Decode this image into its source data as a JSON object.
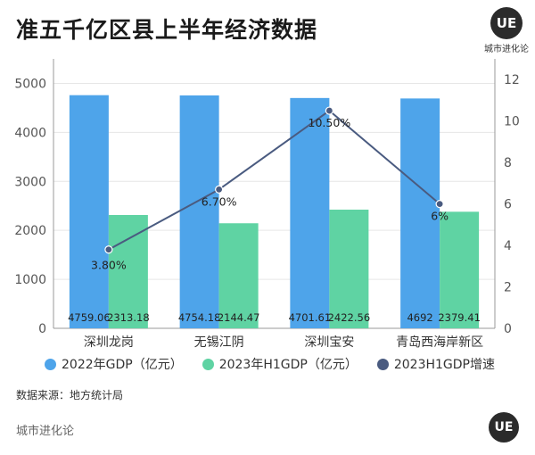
{
  "header": {
    "title": "准五千亿区县上半年经济数据",
    "logo_mark": "UE",
    "logo_caption": "城市进化论"
  },
  "legend": [
    {
      "label": "2022年GDP（亿元）",
      "color": "#4ea4ea"
    },
    {
      "label": "2023年H1GDP（亿元）",
      "color": "#5fd3a3"
    },
    {
      "label": "2023H1GDP增速",
      "color": "#4a5b80"
    }
  ],
  "source_text": "数据来源：地方统计局",
  "footer": {
    "brand": "城市进化论",
    "logo_mark": "UE"
  },
  "chart_data": {
    "type": "bar",
    "categories": [
      "深圳龙岗",
      "无锡江阴",
      "深圳宝安",
      "青岛西海岸新区"
    ],
    "series": [
      {
        "name": "2022年GDP（亿元）",
        "type": "bar",
        "axis": "left",
        "color": "#4ea4ea",
        "values": [
          4759.06,
          4754.18,
          4701.61,
          4692
        ],
        "labels": [
          "4759.06",
          "4754.18",
          "4701.61",
          "4692"
        ]
      },
      {
        "name": "2023年H1GDP（亿元）",
        "type": "bar",
        "axis": "left",
        "color": "#5fd3a3",
        "values": [
          2313.18,
          2144.47,
          2422.56,
          2379.41
        ],
        "labels": [
          "2313.18",
          "2144.47",
          "2422.56",
          "2379.41"
        ]
      },
      {
        "name": "2023H1GDP增速",
        "type": "line",
        "axis": "right",
        "color": "#4a5b80",
        "values": [
          3.8,
          6.7,
          10.5,
          6
        ],
        "labels": [
          "3.80%",
          "6.70%",
          "10.50%",
          "6%"
        ]
      }
    ],
    "y_left": {
      "min": 0,
      "max": 5500,
      "ticks": [
        0,
        1000,
        2000,
        3000,
        4000,
        5000
      ]
    },
    "y_right": {
      "min": 0,
      "max": 13,
      "ticks": [
        0,
        2,
        4,
        6,
        8,
        10,
        12
      ]
    },
    "grid": true,
    "legend_position": "bottom"
  }
}
